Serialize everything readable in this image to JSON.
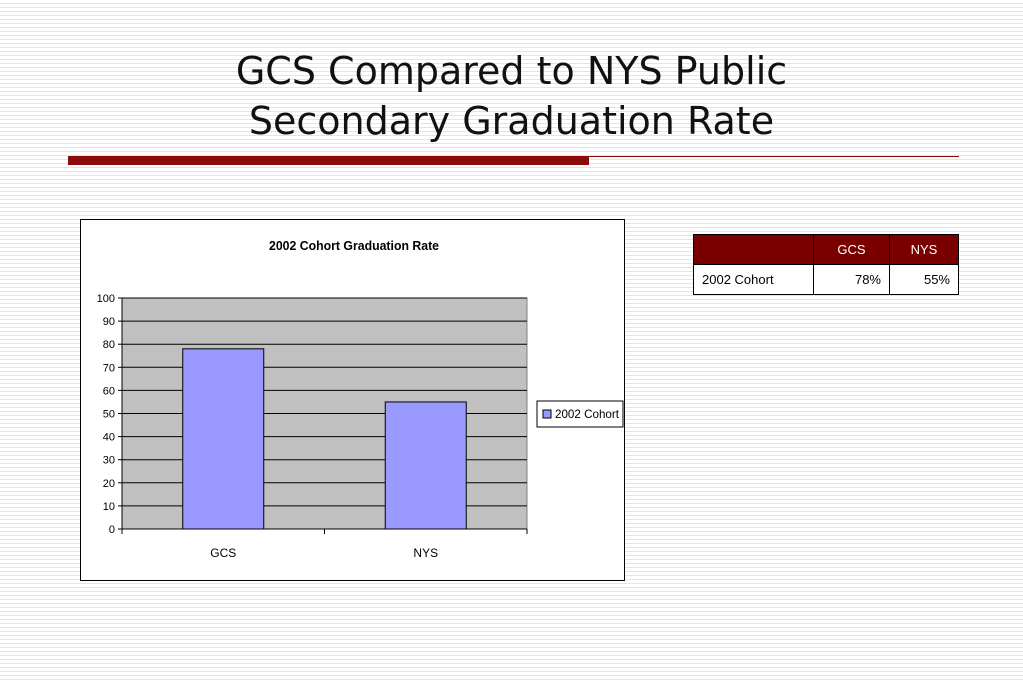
{
  "slide": {
    "title_line1": "GCS Compared to NYS Public",
    "title_line2": "Secondary Graduation Rate"
  },
  "colors": {
    "accent": "#8b0a0a",
    "table_header": "#7a0000",
    "bar_fill": "#9999ff",
    "plot_area": "#c0c0c0"
  },
  "chart_data": {
    "type": "bar",
    "title": "2002 Cohort Graduation Rate",
    "categories": [
      "GCS",
      "NYS"
    ],
    "series": [
      {
        "name": "2002 Cohort",
        "values": [
          78,
          55
        ]
      }
    ],
    "ylim": [
      0,
      100
    ],
    "yticks": [
      0,
      10,
      20,
      30,
      40,
      50,
      60,
      70,
      80,
      90,
      100
    ],
    "xlabel": "",
    "ylabel": "",
    "grid": true,
    "legend_position": "right"
  },
  "table": {
    "headers": [
      "",
      "GCS",
      "NYS"
    ],
    "rows": [
      {
        "label": "2002 Cohort",
        "gcs": "78%",
        "nys": "55%"
      }
    ]
  }
}
